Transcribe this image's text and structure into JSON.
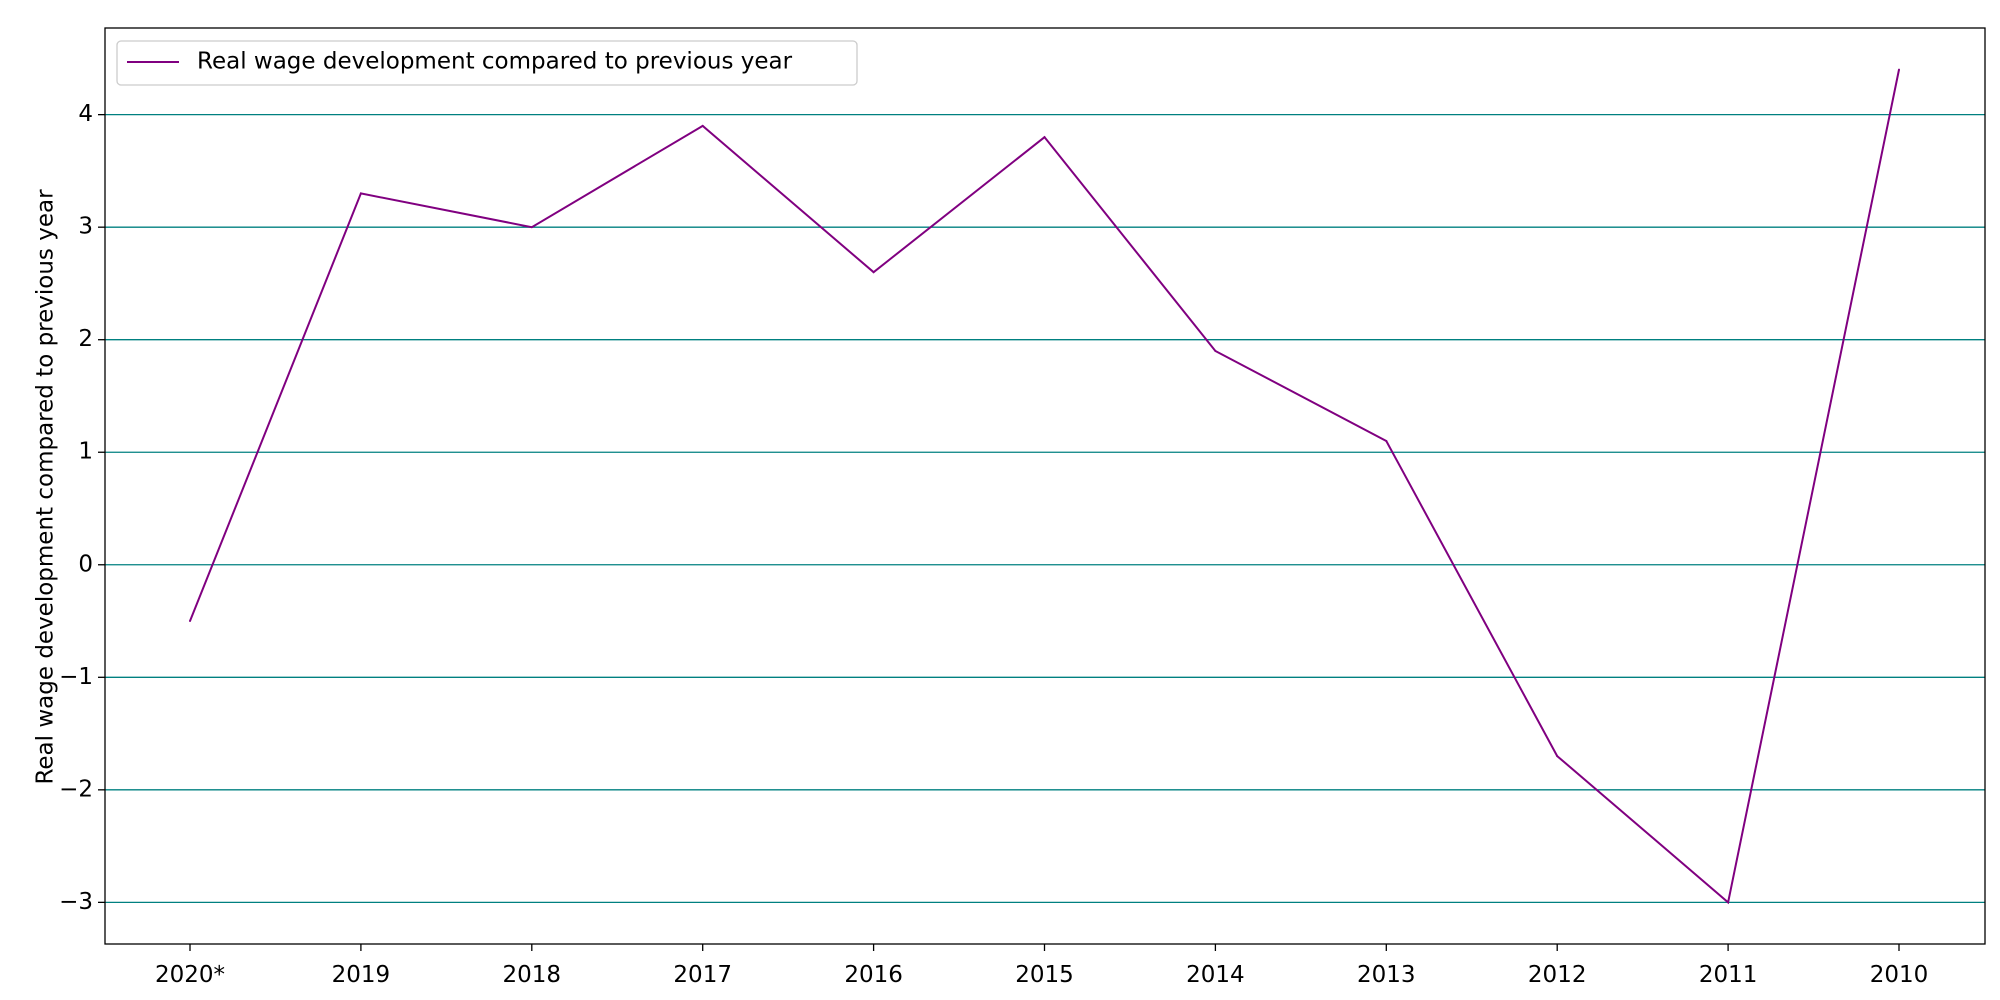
{
  "chart_data": {
    "type": "line",
    "title": "",
    "xlabel": "",
    "ylabel": "Real wage development compared to previous year",
    "categories": [
      "2020*",
      "2019",
      "2018",
      "2017",
      "2016",
      "2015",
      "2014",
      "2013",
      "2012",
      "2011",
      "2010"
    ],
    "series": [
      {
        "name": "Real wage development compared to previous year",
        "values": [
          -0.5,
          3.3,
          3.0,
          3.9,
          2.6,
          3.8,
          1.9,
          1.1,
          -1.7,
          -3.0,
          4.4
        ],
        "color": "#800080"
      }
    ],
    "ylim": [
      -3.37,
      4.77
    ],
    "yticks": [
      -3,
      -2,
      -1,
      0,
      1,
      2,
      3,
      4
    ],
    "ytick_labels": [
      "−3",
      "−2",
      "−1",
      "0",
      "1",
      "2",
      "3",
      "4"
    ],
    "grid": "horizontal",
    "grid_color": "#008080",
    "legend_position": "top-left"
  }
}
